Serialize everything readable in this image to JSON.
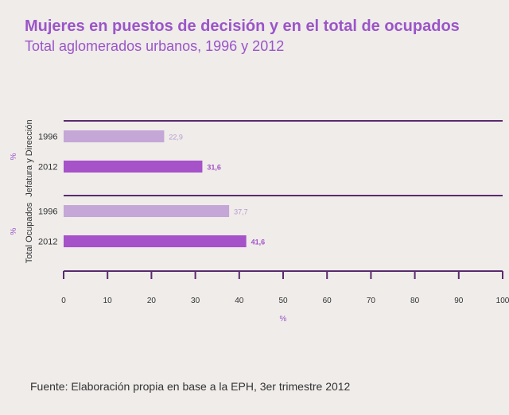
{
  "header": {
    "title": "Mujeres en puestos de decisión y en el total de ocupados",
    "subtitle": "Total aglomerados urbanos, 1996 y 2012"
  },
  "footer": {
    "source": "Fuente: Elaboración propia en base a la EPH, 3er trimestre 2012"
  },
  "colors": {
    "title": "#9b55c8",
    "bar_1996": "#c4a6d7",
    "bar_2012": "#a652c8",
    "axis": "#5a2a6e",
    "label_1996": "#b79ccb",
    "label_2012": "#a652c8",
    "unit": "#9b55c8"
  },
  "chart_data": {
    "type": "bar",
    "orientation": "horizontal",
    "xlabel": "%",
    "xlim": [
      0,
      100
    ],
    "x_ticks": [
      "0",
      "10",
      "20",
      "30",
      "40",
      "50",
      "60",
      "70",
      "80",
      "90",
      "100"
    ],
    "groups": [
      {
        "name": "Jefatura y Dirección",
        "unit": "%",
        "bars": [
          {
            "year": "1996",
            "value": 22.9,
            "label": "22,9"
          },
          {
            "year": "2012",
            "value": 31.6,
            "label": "31,6"
          }
        ]
      },
      {
        "name": "Total Ocupados",
        "unit": "%",
        "bars": [
          {
            "year": "1996",
            "value": 37.7,
            "label": "37,7"
          },
          {
            "year": "2012",
            "value": 41.6,
            "label": "41,6"
          }
        ]
      }
    ]
  }
}
